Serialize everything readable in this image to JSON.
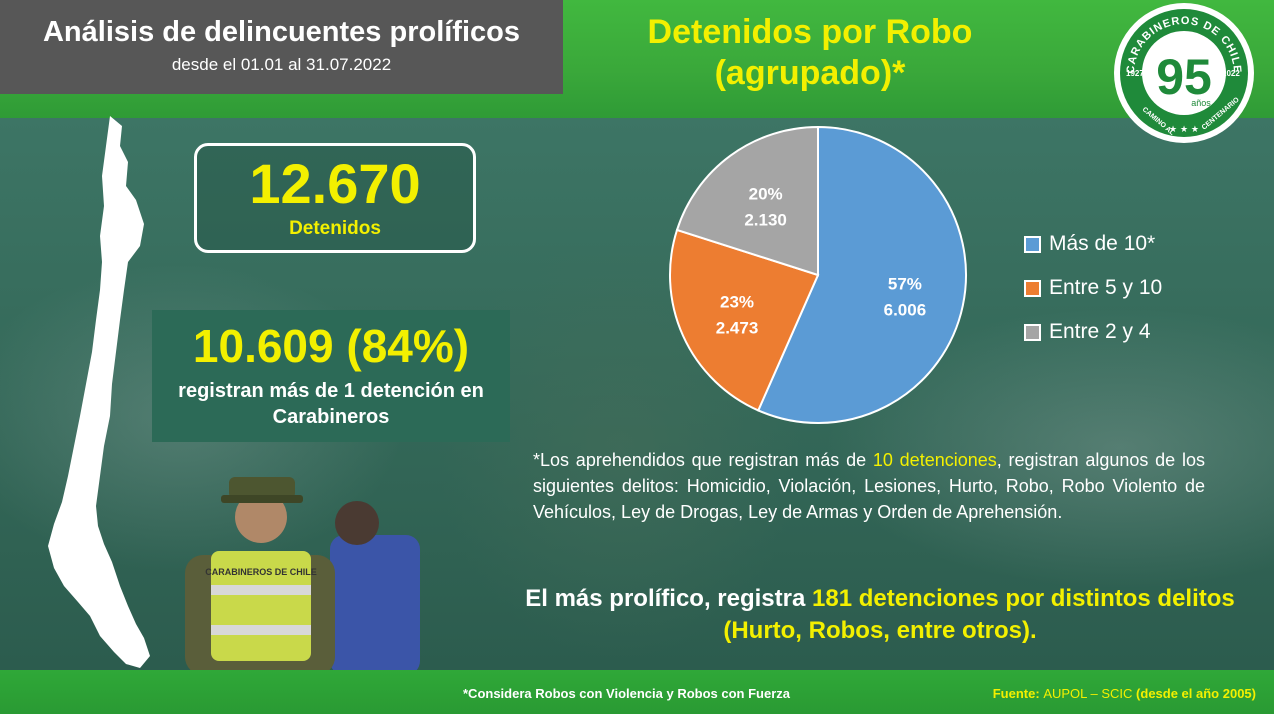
{
  "header": {
    "title": "Análisis de delincuentes prolíficos",
    "subtitle": "desde el 01.01 al 31.07.2022"
  },
  "chart_title": {
    "line1": "Detenidos por Robo",
    "line2": "(agrupado)*"
  },
  "logo": {
    "top_text": "CARABINEROS DE CHILE",
    "number": "95",
    "years": "años",
    "left_year": "1927",
    "right_year": "2022",
    "bottom_left": "CAMINO AL",
    "bottom_right": "CENTENARIO"
  },
  "kpi_total": {
    "value": "12.670",
    "label": "Detenidos"
  },
  "kpi_repeat": {
    "value": "10.609 (84%)",
    "label": "registran más de 1 detención en Carabineros"
  },
  "photo": {
    "vest_text": "CARABINEROS DE CHILE"
  },
  "chart_data": {
    "type": "pie",
    "title": "Detenidos por Robo (agrupado)*",
    "legend_position": "right",
    "slices": [
      {
        "name": "Más de 10*",
        "percent": 57,
        "value": 6006,
        "percent_label": "57%",
        "value_label": "6.006",
        "color": "#5b9bd5"
      },
      {
        "name": "Entre 5 y 10",
        "percent": 23,
        "value": 2473,
        "percent_label": "23%",
        "value_label": "2.473",
        "color": "#ed7d31"
      },
      {
        "name": "Entre 2 y 4",
        "percent": 20,
        "value": 2130,
        "percent_label": "20%",
        "value_label": "2.130",
        "color": "#a5a5a5"
      }
    ]
  },
  "note": {
    "part1": "*Los aprehendidos que registran más de ",
    "highlight": "10 detenciones",
    "part2": ", registran algunos de los siguientes delitos: Homicidio, Violación, Lesiones, Hurto, Robo, Robo Violento de Vehículos, Ley de Drogas, Ley de Armas y Orden de Aprehensión."
  },
  "prolific": {
    "part1": "El más prolífico, registra ",
    "highlight": "181 detenciones por distintos delitos (Hurto, Robos, entre otros)."
  },
  "footer": {
    "footnote": "*Considera Robos con Violencia y Robos con Fuerza",
    "source_label": "Fuente:",
    "source_text": "AUPOL – SCIC",
    "source_suffix": "(desde el año 2005)"
  },
  "colors": {
    "accent_yellow": "#f3f000",
    "brand_green": "#3aa83a",
    "dark_green": "#2c6a57",
    "title_gray": "#575757"
  }
}
